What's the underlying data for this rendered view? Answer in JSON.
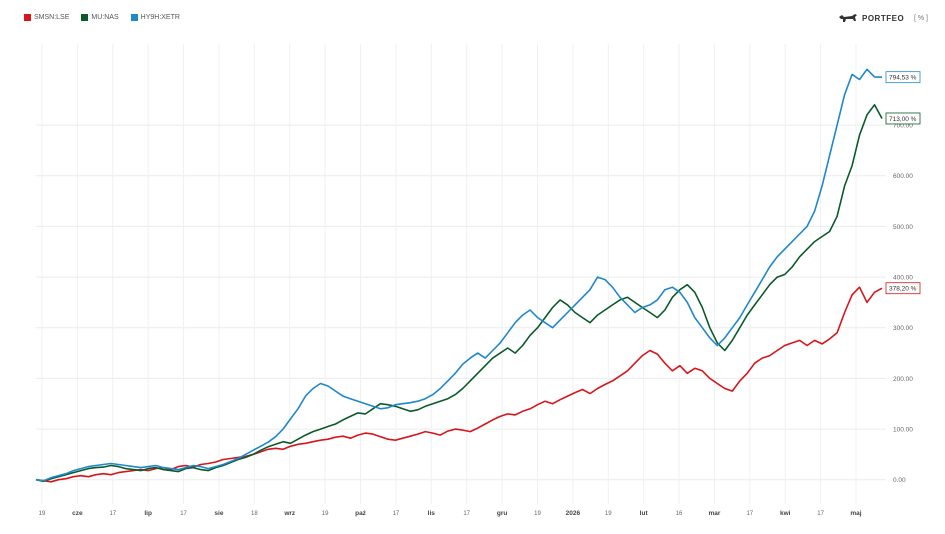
{
  "legend": [
    {
      "name": "SMSN:LSE",
      "color": "#d7161c"
    },
    {
      "name": "MU:NAS",
      "color": "#0b5a2a"
    },
    {
      "name": "HY9H:XETR",
      "color": "#1f87cc"
    }
  ],
  "brand": {
    "name": "PORTFEO",
    "icon": "bull-icon"
  },
  "unit_label": "[ % ]",
  "chart_data": {
    "type": "line",
    "title": "",
    "xlabel": "",
    "ylabel": "",
    "ylim": [
      -40,
      860
    ],
    "yticks": [
      "0.00",
      "100.00",
      "200.00",
      "300.00",
      "400.00",
      "500.00",
      "600.00",
      "700.00"
    ],
    "ytick_values": [
      0,
      100,
      200,
      300,
      400,
      500,
      600,
      700
    ],
    "grid": true,
    "legend_position": "top-left",
    "xticks": [
      {
        "label": "19",
        "bold": false
      },
      {
        "label": "cze",
        "bold": true
      },
      {
        "label": "17",
        "bold": false
      },
      {
        "label": "lip",
        "bold": true
      },
      {
        "label": "17",
        "bold": false
      },
      {
        "label": "sie",
        "bold": true
      },
      {
        "label": "18",
        "bold": false
      },
      {
        "label": "wrz",
        "bold": true
      },
      {
        "label": "19",
        "bold": false
      },
      {
        "label": "paź",
        "bold": true
      },
      {
        "label": "17",
        "bold": false
      },
      {
        "label": "lis",
        "bold": true
      },
      {
        "label": "17",
        "bold": false
      },
      {
        "label": "gru",
        "bold": true
      },
      {
        "label": "19",
        "bold": false
      },
      {
        "label": "2026",
        "bold": true
      },
      {
        "label": "19",
        "bold": false
      },
      {
        "label": "lut",
        "bold": true
      },
      {
        "label": "16",
        "bold": false
      },
      {
        "label": "mar",
        "bold": true
      },
      {
        "label": "17",
        "bold": false
      },
      {
        "label": "kwi",
        "bold": true
      },
      {
        "label": "17",
        "bold": false
      },
      {
        "label": "maj",
        "bold": true
      }
    ],
    "series": [
      {
        "name": "SMSN:LSE",
        "color": "#d7161c",
        "end_label": "378,20 %",
        "values": [
          0,
          -2,
          -4,
          0,
          2,
          6,
          8,
          6,
          10,
          12,
          10,
          14,
          16,
          18,
          20,
          18,
          22,
          24,
          20,
          26,
          28,
          25,
          30,
          32,
          35,
          40,
          42,
          44,
          46,
          50,
          55,
          60,
          62,
          60,
          66,
          70,
          72,
          75,
          78,
          80,
          84,
          86,
          82,
          88,
          92,
          90,
          85,
          80,
          78,
          82,
          86,
          90,
          95,
          92,
          88,
          96,
          100,
          98,
          95,
          102,
          110,
          118,
          125,
          130,
          128,
          135,
          140,
          148,
          155,
          150,
          158,
          165,
          172,
          178,
          170,
          180,
          188,
          195,
          205,
          215,
          230,
          245,
          255,
          248,
          230,
          215,
          225,
          210,
          220,
          215,
          200,
          190,
          180,
          175,
          195,
          210,
          230,
          240,
          245,
          255,
          265,
          270,
          275,
          265,
          275,
          268,
          278,
          290,
          330,
          365,
          380,
          350,
          370,
          378
        ]
      },
      {
        "name": "MU:NAS",
        "color": "#0b5a2a",
        "end_label": "713,00 %",
        "values": [
          0,
          -3,
          2,
          6,
          10,
          14,
          18,
          22,
          24,
          25,
          28,
          26,
          22,
          20,
          18,
          22,
          24,
          20,
          18,
          16,
          22,
          24,
          20,
          18,
          24,
          28,
          34,
          40,
          44,
          50,
          58,
          65,
          70,
          75,
          72,
          80,
          88,
          95,
          100,
          105,
          110,
          118,
          125,
          132,
          130,
          140,
          150,
          148,
          145,
          140,
          135,
          138,
          145,
          150,
          155,
          160,
          168,
          180,
          195,
          210,
          225,
          240,
          250,
          260,
          250,
          265,
          285,
          300,
          320,
          340,
          355,
          345,
          330,
          320,
          310,
          325,
          335,
          345,
          355,
          360,
          350,
          340,
          330,
          320,
          335,
          360,
          375,
          385,
          370,
          340,
          300,
          270,
          255,
          275,
          300,
          325,
          345,
          365,
          385,
          400,
          405,
          420,
          440,
          455,
          470,
          480,
          490,
          520,
          580,
          620,
          680,
          720,
          740,
          713
        ]
      },
      {
        "name": "HY9H:XETR",
        "color": "#1f87cc",
        "end_label": "794,53 %",
        "values": [
          0,
          -2,
          4,
          8,
          12,
          18,
          22,
          26,
          28,
          30,
          32,
          30,
          28,
          26,
          24,
          26,
          28,
          24,
          22,
          20,
          24,
          28,
          26,
          22,
          26,
          30,
          36,
          42,
          50,
          58,
          66,
          74,
          85,
          100,
          120,
          140,
          165,
          180,
          190,
          185,
          175,
          165,
          160,
          155,
          150,
          145,
          140,
          142,
          148,
          150,
          152,
          155,
          160,
          168,
          180,
          195,
          210,
          228,
          240,
          250,
          240,
          255,
          270,
          290,
          310,
          325,
          335,
          320,
          310,
          300,
          315,
          330,
          345,
          360,
          375,
          400,
          395,
          380,
          360,
          345,
          330,
          340,
          345,
          355,
          375,
          380,
          370,
          350,
          320,
          300,
          280,
          265,
          280,
          300,
          320,
          345,
          370,
          395,
          420,
          440,
          455,
          470,
          485,
          500,
          530,
          580,
          640,
          700,
          760,
          800,
          790,
          810,
          795,
          794.53
        ]
      }
    ]
  }
}
